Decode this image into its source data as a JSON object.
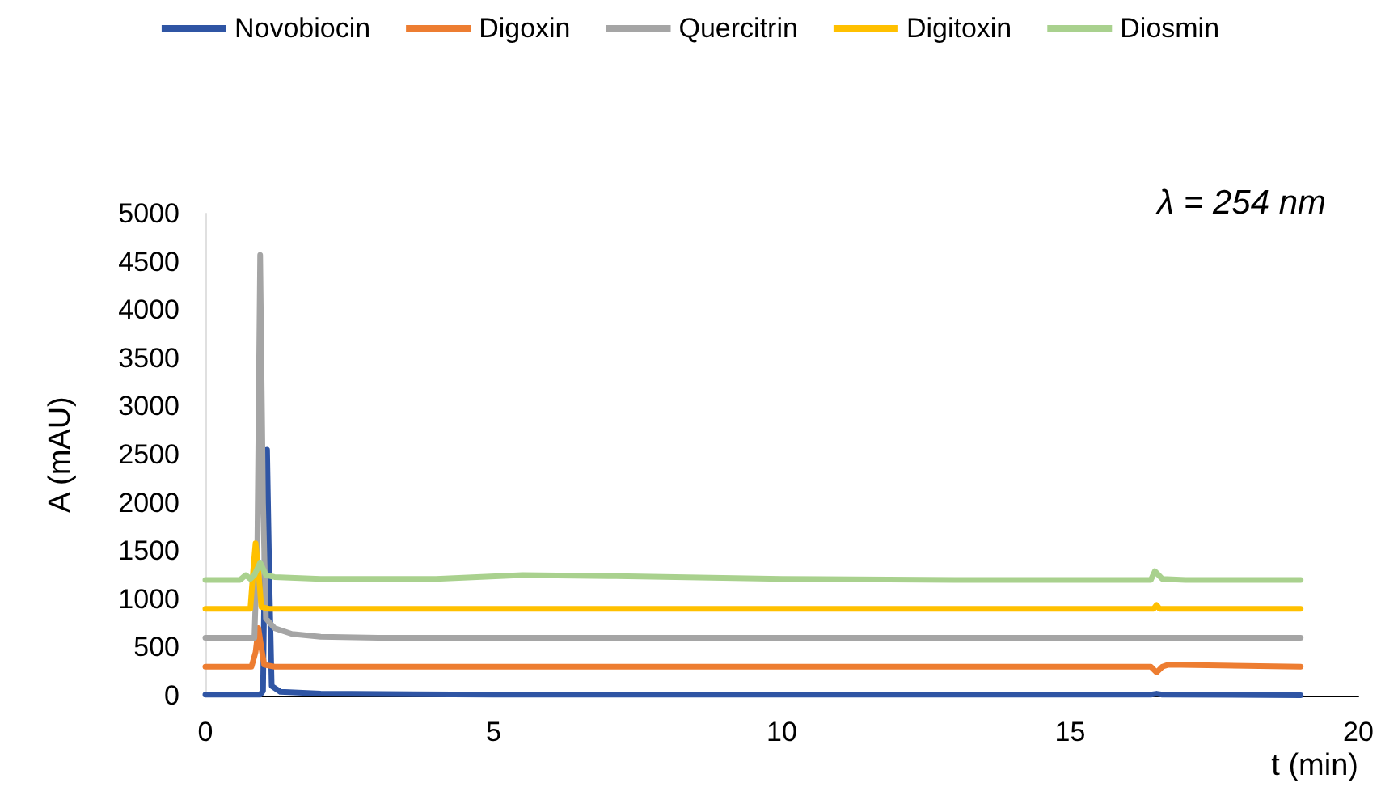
{
  "chart_data": {
    "type": "line",
    "xlabel": "t (min)",
    "ylabel": "A (mAU)",
    "annotations": [
      "λ = 254 nm"
    ],
    "xlim": [
      0,
      20
    ],
    "xticks": [
      0,
      5,
      10,
      15,
      20
    ],
    "ylim": [
      0,
      5000
    ],
    "yticks": [
      0,
      500,
      1000,
      1500,
      2000,
      2500,
      3000,
      3500,
      4000,
      4500,
      5000
    ],
    "grid": false,
    "legend": "top",
    "marker": "none",
    "line_style": "solid",
    "series": [
      {
        "name": "Novobiocin",
        "color": "#2f55a4",
        "x": [
          0,
          0.95,
          1.0,
          1.03,
          1.07,
          1.11,
          1.15,
          1.3,
          2,
          5,
          10,
          16.4,
          16.5,
          16.6,
          19
        ],
        "values": [
          10,
          10,
          50,
          1500,
          2550,
          1200,
          100,
          40,
          20,
          10,
          10,
          10,
          20,
          10,
          5
        ]
      },
      {
        "name": "Digoxin",
        "color": "#ed7d31",
        "x": [
          0,
          0.8,
          0.87,
          0.92,
          0.97,
          1.02,
          1.2,
          5,
          10,
          16.4,
          16.5,
          16.6,
          16.7,
          19
        ],
        "values": [
          300,
          300,
          450,
          700,
          500,
          320,
          300,
          300,
          300,
          300,
          240,
          300,
          320,
          300
        ]
      },
      {
        "name": "Quercitrin",
        "color": "#a5a5a5",
        "x": [
          0,
          0.85,
          0.9,
          0.95,
          1.0,
          1.05,
          1.2,
          1.5,
          2,
          3,
          10,
          19
        ],
        "values": [
          600,
          600,
          1500,
          4570,
          2000,
          800,
          700,
          640,
          610,
          600,
          600,
          600
        ]
      },
      {
        "name": "Digitoxin",
        "color": "#ffc000",
        "x": [
          0,
          0.78,
          0.83,
          0.87,
          0.92,
          0.97,
          1.1,
          5,
          10,
          16.45,
          16.5,
          16.55,
          19
        ],
        "values": [
          900,
          900,
          1300,
          1580,
          1300,
          920,
          900,
          900,
          900,
          900,
          940,
          900,
          900
        ]
      },
      {
        "name": "Diosmin",
        "color": "#a9d18e",
        "x": [
          0,
          0.6,
          0.7,
          0.78,
          0.85,
          0.95,
          1.05,
          1.2,
          2,
          4,
          5.5,
          7,
          10,
          13,
          16.4,
          16.47,
          16.6,
          17,
          19
        ],
        "values": [
          1200,
          1200,
          1250,
          1210,
          1250,
          1380,
          1250,
          1230,
          1210,
          1210,
          1250,
          1240,
          1210,
          1200,
          1200,
          1290,
          1210,
          1200,
          1200
        ]
      }
    ]
  }
}
